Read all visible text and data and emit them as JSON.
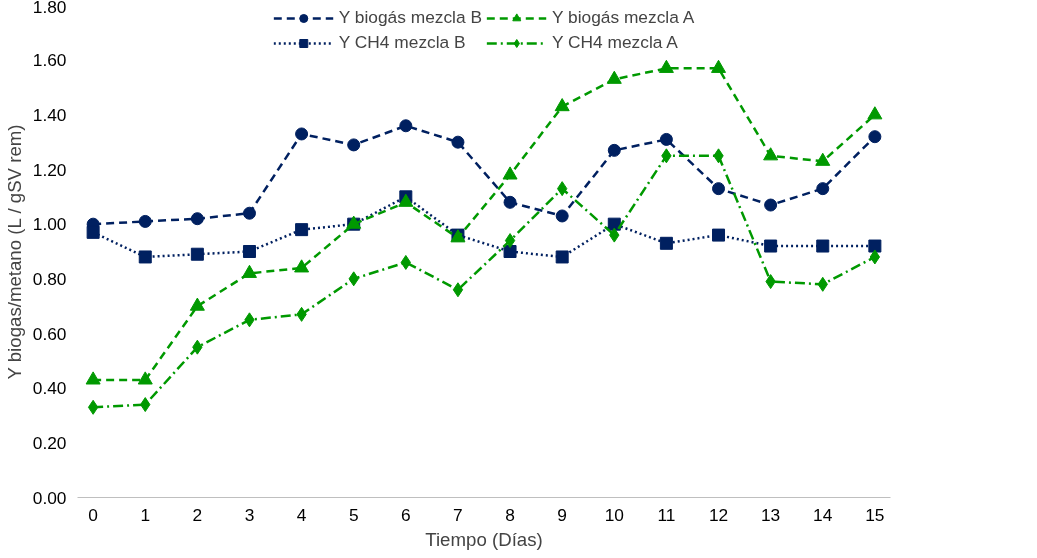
{
  "chart_data": {
    "type": "line",
    "xlabel": "Tiempo (Días)",
    "ylabel": "Y biogas/metano (L / gSV rem)",
    "x": [
      0,
      1,
      2,
      3,
      4,
      5,
      6,
      7,
      8,
      9,
      10,
      11,
      12,
      13,
      14,
      15
    ],
    "xlim": [
      -0.3,
      15.3
    ],
    "xticks": [
      0,
      1,
      2,
      3,
      4,
      5,
      6,
      7,
      8,
      9,
      10,
      11,
      12,
      13,
      14,
      15
    ],
    "ylim": [
      0,
      1.8
    ],
    "yticks": [
      {
        "value": 0,
        "label": "0.00"
      },
      {
        "value": 0.2,
        "label": "0.20"
      },
      {
        "value": 0.4,
        "label": "0.40"
      },
      {
        "value": 0.6,
        "label": "0.60"
      },
      {
        "value": 0.8,
        "label": "0.80"
      },
      {
        "value": 1.0,
        "label": "1.00"
      },
      {
        "value": 1.2,
        "label": "1.20"
      },
      {
        "value": 1.4,
        "label": "1.40"
      },
      {
        "value": 1.6,
        "label": "1.60"
      },
      {
        "value": 1.8,
        "label": "1.80"
      }
    ],
    "grid": false,
    "legend": "top",
    "series": [
      {
        "name": "Y biogás mezcla B",
        "color": "#002060",
        "marker": "circle",
        "line_style": "dashed",
        "values": [
          1.0,
          1.01,
          1.02,
          1.04,
          1.33,
          1.29,
          1.36,
          1.3,
          1.08,
          1.03,
          1.27,
          1.31,
          1.13,
          1.07,
          1.13,
          1.32
        ]
      },
      {
        "name": "Y CH4 mezcla B",
        "color": "#002060",
        "marker": "square",
        "line_style": "dotted",
        "values": [
          0.97,
          0.88,
          0.89,
          0.9,
          0.98,
          1.0,
          1.1,
          0.96,
          0.9,
          0.88,
          1.0,
          0.93,
          0.96,
          0.92,
          0.92,
          0.92
        ]
      },
      {
        "name": "Y biogás mezcla A",
        "color": "#009900",
        "marker": "triangle",
        "line_style": "dashed",
        "values": [
          0.43,
          0.43,
          0.7,
          0.82,
          0.84,
          1.0,
          1.08,
          0.95,
          1.18,
          1.43,
          1.53,
          1.57,
          1.57,
          1.25,
          1.23,
          1.4
        ]
      },
      {
        "name": "Y CH4 mezcla A",
        "color": "#009900",
        "marker": "diamond",
        "line_style": "dashdot",
        "values": [
          0.33,
          0.34,
          0.55,
          0.65,
          0.67,
          0.8,
          0.86,
          0.76,
          0.94,
          1.13,
          0.96,
          1.25,
          1.25,
          0.79,
          0.78,
          0.88
        ]
      }
    ]
  }
}
